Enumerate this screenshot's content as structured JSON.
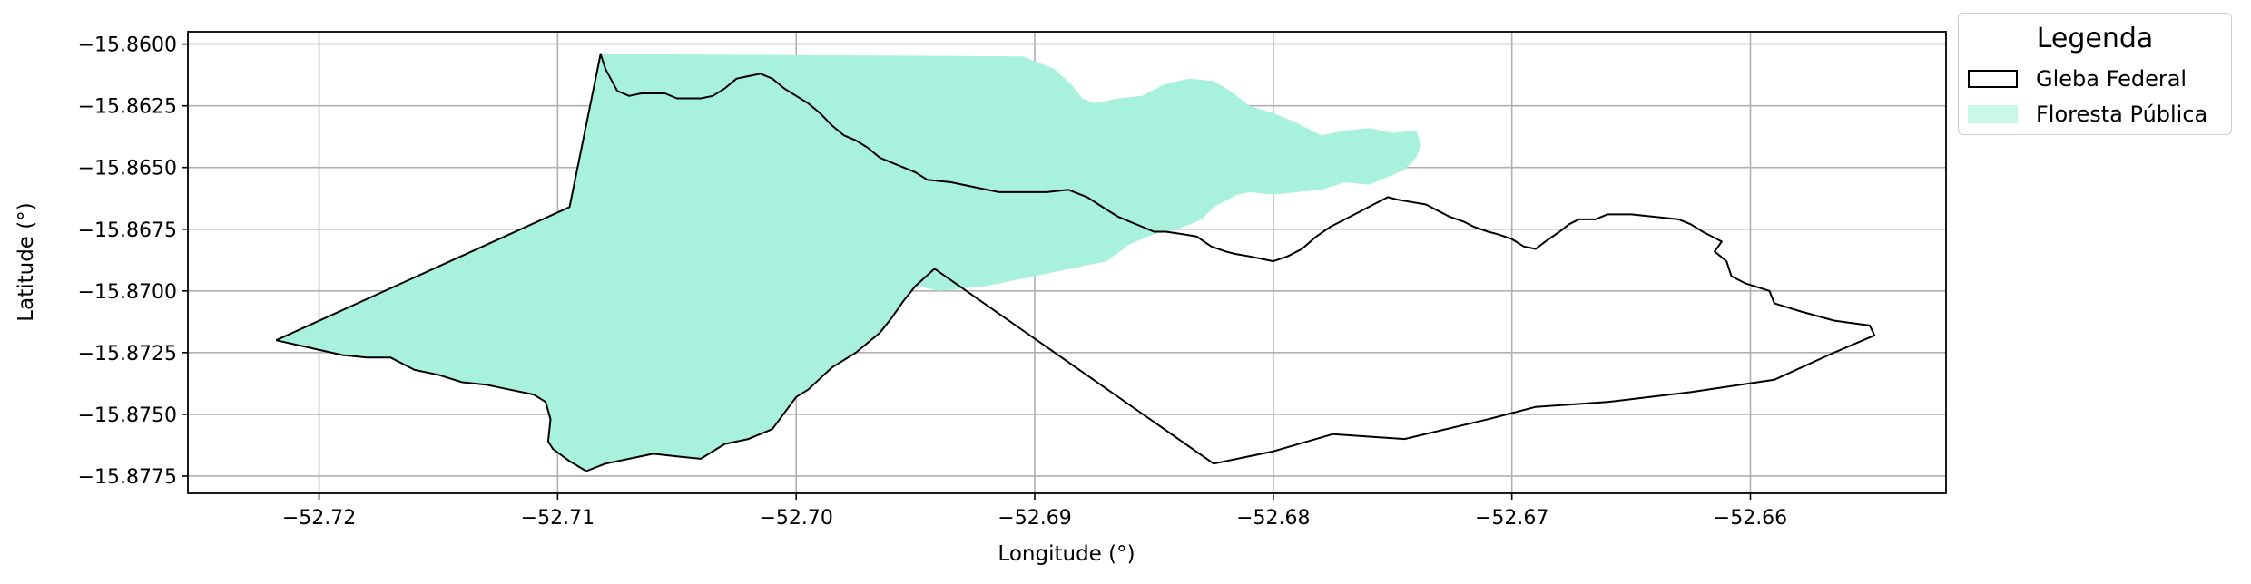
{
  "chart_data": {
    "type": "map",
    "xlabel": "Longitude (°)",
    "ylabel": "Latitude (°)",
    "xlim": [
      -52.7255,
      -52.6518
    ],
    "ylim": [
      -15.8782,
      -15.8595
    ],
    "xticks": [
      -52.72,
      -52.71,
      -52.7,
      -52.69,
      -52.68,
      -52.67,
      -52.66
    ],
    "xtick_labels": [
      "−52.72",
      "−52.71",
      "−52.70",
      "−52.69",
      "−52.68",
      "−52.67",
      "−52.66"
    ],
    "yticks": [
      -15.86,
      -15.8625,
      -15.865,
      -15.8675,
      -15.87,
      -15.8725,
      -15.875,
      -15.8775
    ],
    "ytick_labels": [
      "−15.8600",
      "−15.8625",
      "−15.8650",
      "−15.8675",
      "−15.8700",
      "−15.8725",
      "−15.8750",
      "−15.8775"
    ],
    "grid": true,
    "legend": {
      "title": "Legenda",
      "placement": "outside-top-right",
      "entries": [
        {
          "label": "Gleba Federal",
          "style": "outline",
          "color": "#000000"
        },
        {
          "label": "Floresta Pública",
          "style": "fill",
          "color": "#a8f2dd"
        }
      ]
    },
    "layers": [
      {
        "name": "Floresta Pública",
        "fill": "#a8f2dd",
        "coords": [
          [
            -52.7218,
            -15.872
          ],
          [
            -52.719,
            -15.8726
          ],
          [
            -52.718,
            -15.8727
          ],
          [
            -52.717,
            -15.8727
          ],
          [
            -52.716,
            -15.8732
          ],
          [
            -52.715,
            -15.8734
          ],
          [
            -52.714,
            -15.8737
          ],
          [
            -52.713,
            -15.8738
          ],
          [
            -52.712,
            -15.874
          ],
          [
            -52.711,
            -15.8742
          ],
          [
            -52.7105,
            -15.8745
          ],
          [
            -52.7103,
            -15.8752
          ],
          [
            -52.7104,
            -15.8761
          ],
          [
            -52.7102,
            -15.8764
          ],
          [
            -52.7095,
            -15.8769
          ],
          [
            -52.7088,
            -15.8773
          ],
          [
            -52.708,
            -15.877
          ],
          [
            -52.707,
            -15.8768
          ],
          [
            -52.706,
            -15.8766
          ],
          [
            -52.705,
            -15.8767
          ],
          [
            -52.704,
            -15.8768
          ],
          [
            -52.703,
            -15.8762
          ],
          [
            -52.702,
            -15.876
          ],
          [
            -52.701,
            -15.8756
          ],
          [
            -52.7,
            -15.8743
          ],
          [
            -52.6995,
            -15.874
          ],
          [
            -52.6985,
            -15.8731
          ],
          [
            -52.6975,
            -15.8725
          ],
          [
            -52.6965,
            -15.8717
          ],
          [
            -52.696,
            -15.8711
          ],
          [
            -52.6955,
            -15.8704
          ],
          [
            -52.695,
            -15.8698
          ],
          [
            -52.694,
            -15.87
          ],
          [
            -52.693,
            -15.8699
          ],
          [
            -52.692,
            -15.8698
          ],
          [
            -52.691,
            -15.8696
          ],
          [
            -52.69,
            -15.8694
          ],
          [
            -52.689,
            -15.8692
          ],
          [
            -52.688,
            -15.869
          ],
          [
            -52.687,
            -15.8688
          ],
          [
            -52.686,
            -15.8681
          ],
          [
            -52.685,
            -15.8677
          ],
          [
            -52.684,
            -15.8675
          ],
          [
            -52.683,
            -15.8671
          ],
          [
            -52.6825,
            -15.8666
          ],
          [
            -52.6815,
            -15.8661
          ],
          [
            -52.681,
            -15.866
          ],
          [
            -52.68,
            -15.8661
          ],
          [
            -52.679,
            -15.866
          ],
          [
            -52.678,
            -15.8659
          ],
          [
            -52.677,
            -15.8656
          ],
          [
            -52.676,
            -15.8657
          ],
          [
            -52.675,
            -15.8653
          ],
          [
            -52.6745,
            -15.8651
          ],
          [
            -52.674,
            -15.8646
          ],
          [
            -52.6738,
            -15.8641
          ],
          [
            -52.674,
            -15.8635
          ],
          [
            -52.675,
            -15.8636
          ],
          [
            -52.676,
            -15.8634
          ],
          [
            -52.677,
            -15.8635
          ],
          [
            -52.678,
            -15.8637
          ],
          [
            -52.679,
            -15.8632
          ],
          [
            -52.68,
            -15.8628
          ],
          [
            -52.681,
            -15.8625
          ],
          [
            -52.6818,
            -15.8619
          ],
          [
            -52.6825,
            -15.8615
          ],
          [
            -52.6835,
            -15.8614
          ],
          [
            -52.6845,
            -15.8616
          ],
          [
            -52.6855,
            -15.8621
          ],
          [
            -52.6865,
            -15.8622
          ],
          [
            -52.6875,
            -15.8624
          ],
          [
            -52.688,
            -15.8622
          ],
          [
            -52.6885,
            -15.8616
          ],
          [
            -52.6892,
            -15.861
          ],
          [
            -52.6905,
            -15.8605
          ],
          [
            -52.7082,
            -15.8604
          ],
          [
            -52.7095,
            -15.8666
          ]
        ]
      },
      {
        "name": "Gleba Federal",
        "stroke": "#000000",
        "coords": [
          [
            -52.7218,
            -15.872
          ],
          [
            -52.719,
            -15.8726
          ],
          [
            -52.718,
            -15.8727
          ],
          [
            -52.717,
            -15.8727
          ],
          [
            -52.716,
            -15.8732
          ],
          [
            -52.715,
            -15.8734
          ],
          [
            -52.714,
            -15.8737
          ],
          [
            -52.713,
            -15.8738
          ],
          [
            -52.712,
            -15.874
          ],
          [
            -52.711,
            -15.8742
          ],
          [
            -52.7105,
            -15.8745
          ],
          [
            -52.7103,
            -15.8752
          ],
          [
            -52.7104,
            -15.8761
          ],
          [
            -52.7102,
            -15.8764
          ],
          [
            -52.7095,
            -15.8769
          ],
          [
            -52.7088,
            -15.8773
          ],
          [
            -52.708,
            -15.877
          ],
          [
            -52.707,
            -15.8768
          ],
          [
            -52.706,
            -15.8766
          ],
          [
            -52.705,
            -15.8767
          ],
          [
            -52.704,
            -15.8768
          ],
          [
            -52.703,
            -15.8762
          ],
          [
            -52.702,
            -15.876
          ],
          [
            -52.701,
            -15.8756
          ],
          [
            -52.7,
            -15.8743
          ],
          [
            -52.6995,
            -15.874
          ],
          [
            -52.6985,
            -15.8731
          ],
          [
            -52.6975,
            -15.8725
          ],
          [
            -52.6965,
            -15.8717
          ],
          [
            -52.696,
            -15.8711
          ],
          [
            -52.6955,
            -15.8704
          ],
          [
            -52.695,
            -15.8698
          ],
          [
            -52.6942,
            -15.8691
          ],
          [
            -52.6825,
            -15.877
          ],
          [
            -52.68,
            -15.8765
          ],
          [
            -52.6775,
            -15.8758
          ],
          [
            -52.6745,
            -15.876
          ],
          [
            -52.671,
            -15.8752
          ],
          [
            -52.669,
            -15.8747
          ],
          [
            -52.666,
            -15.8745
          ],
          [
            -52.6625,
            -15.8741
          ],
          [
            -52.659,
            -15.8736
          ],
          [
            -52.6565,
            -15.8725
          ],
          [
            -52.6548,
            -15.8718
          ],
          [
            -52.655,
            -15.8714
          ],
          [
            -52.6565,
            -15.8712
          ],
          [
            -52.658,
            -15.8708
          ],
          [
            -52.659,
            -15.8705
          ],
          [
            -52.6592,
            -15.87
          ],
          [
            -52.6602,
            -15.8697
          ],
          [
            -52.6608,
            -15.8694
          ],
          [
            -52.661,
            -15.8688
          ],
          [
            -52.6615,
            -15.8684
          ],
          [
            -52.6612,
            -15.868
          ],
          [
            -52.662,
            -15.8676
          ],
          [
            -52.6625,
            -15.8673
          ],
          [
            -52.663,
            -15.8671
          ],
          [
            -52.664,
            -15.867
          ],
          [
            -52.665,
            -15.8669
          ],
          [
            -52.6655,
            -15.8669
          ],
          [
            -52.666,
            -15.8669
          ],
          [
            -52.6665,
            -15.8671
          ],
          [
            -52.6672,
            -15.8671
          ],
          [
            -52.6676,
            -15.8673
          ],
          [
            -52.668,
            -15.8676
          ],
          [
            -52.6686,
            -15.868
          ],
          [
            -52.669,
            -15.8683
          ],
          [
            -52.6695,
            -15.8682
          ],
          [
            -52.67,
            -15.8679
          ],
          [
            -52.6706,
            -15.8677
          ],
          [
            -52.671,
            -15.8676
          ],
          [
            -52.6716,
            -15.8674
          ],
          [
            -52.672,
            -15.8672
          ],
          [
            -52.6726,
            -15.867
          ],
          [
            -52.673,
            -15.8668
          ],
          [
            -52.6736,
            -15.8665
          ],
          [
            -52.6742,
            -15.8664
          ],
          [
            -52.6748,
            -15.8663
          ],
          [
            -52.6752,
            -15.8662
          ],
          [
            -52.6758,
            -15.8665
          ],
          [
            -52.6764,
            -15.8668
          ],
          [
            -52.677,
            -15.8671
          ],
          [
            -52.6776,
            -15.8674
          ],
          [
            -52.6782,
            -15.8678
          ],
          [
            -52.6788,
            -15.8683
          ],
          [
            -52.6794,
            -15.8686
          ],
          [
            -52.68,
            -15.8688
          ],
          [
            -52.6805,
            -15.8687
          ],
          [
            -52.681,
            -15.8686
          ],
          [
            -52.6816,
            -15.8685
          ],
          [
            -52.682,
            -15.8684
          ],
          [
            -52.6826,
            -15.8682
          ],
          [
            -52.6832,
            -15.8678
          ],
          [
            -52.6838,
            -15.8677
          ],
          [
            -52.6845,
            -15.8676
          ],
          [
            -52.685,
            -15.8676
          ],
          [
            -52.6855,
            -15.8674
          ],
          [
            -52.686,
            -15.8672
          ],
          [
            -52.6865,
            -15.867
          ],
          [
            -52.687,
            -15.8667
          ],
          [
            -52.6878,
            -15.8662
          ],
          [
            -52.6886,
            -15.8659
          ],
          [
            -52.6895,
            -15.866
          ],
          [
            -52.6905,
            -15.866
          ],
          [
            -52.6915,
            -15.866
          ],
          [
            -52.6925,
            -15.8658
          ],
          [
            -52.6935,
            -15.8656
          ],
          [
            -52.6945,
            -15.8655
          ],
          [
            -52.695,
            -15.8652
          ],
          [
            -52.6955,
            -15.865
          ],
          [
            -52.696,
            -15.8648
          ],
          [
            -52.6965,
            -15.8646
          ],
          [
            -52.697,
            -15.8642
          ],
          [
            -52.6975,
            -15.8639
          ],
          [
            -52.698,
            -15.8637
          ],
          [
            -52.6985,
            -15.8633
          ],
          [
            -52.699,
            -15.8628
          ],
          [
            -52.6995,
            -15.8624
          ],
          [
            -52.7,
            -15.8621
          ],
          [
            -52.7005,
            -15.8618
          ],
          [
            -52.701,
            -15.8614
          ],
          [
            -52.7015,
            -15.8612
          ],
          [
            -52.702,
            -15.8613
          ],
          [
            -52.7025,
            -15.8614
          ],
          [
            -52.703,
            -15.8618
          ],
          [
            -52.7035,
            -15.8621
          ],
          [
            -52.704,
            -15.8622
          ],
          [
            -52.7045,
            -15.8622
          ],
          [
            -52.705,
            -15.8622
          ],
          [
            -52.7055,
            -15.862
          ],
          [
            -52.706,
            -15.862
          ],
          [
            -52.7065,
            -15.862
          ],
          [
            -52.707,
            -15.8621
          ],
          [
            -52.7075,
            -15.8619
          ],
          [
            -52.708,
            -15.861
          ],
          [
            -52.7082,
            -15.8604
          ],
          [
            -52.7095,
            -15.8666
          ],
          [
            -52.7218,
            -15.872
          ]
        ]
      }
    ]
  }
}
